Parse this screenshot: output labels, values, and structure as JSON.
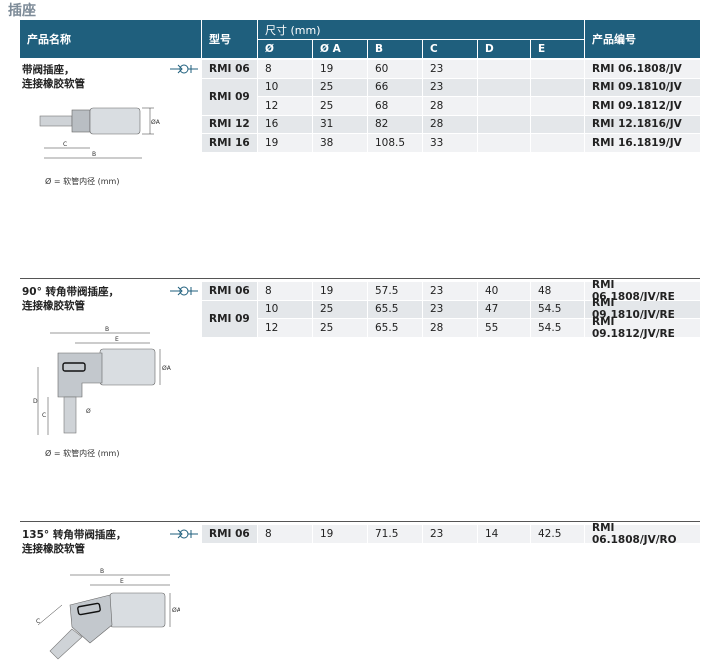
{
  "title": "插座",
  "table": {
    "header": {
      "product_name": "产品名称",
      "model": "型号",
      "dimensions": "尺寸 (mm)",
      "columns": [
        "Ø",
        "Ø A",
        "B",
        "C",
        "D",
        "E"
      ],
      "part_number": "产品编号"
    }
  },
  "sections": [
    {
      "name_lines": [
        "带阀插座，",
        "连接橡胶软管"
      ],
      "rows": [
        {
          "model": "RMI 06",
          "values": [
            8,
            19,
            60,
            23
          ],
          "part_number": "RMI 06.1808/JV"
        },
        {
          "model": "RMI 09",
          "values": [
            10,
            25,
            66,
            23
          ],
          "part_number": "RMI 09.1810/JV"
        },
        {
          "model": null,
          "values": [
            12,
            25,
            68,
            28
          ],
          "part_number": "RMI 09.1812/JV"
        },
        {
          "model": "RMI 12",
          "values": [
            16,
            31,
            82,
            28
          ],
          "part_number": "RMI 12.1816/JV"
        },
        {
          "model": "RMI 16",
          "values": [
            19,
            38,
            108.5,
            33
          ],
          "part_number": "RMI 16.1819/JV"
        }
      ],
      "diagram_labels": [
        "ØA",
        "C",
        "B"
      ],
      "note": "Ø = 软管内径 (mm)"
    },
    {
      "name_lines": [
        "90° 转角带阀插座，",
        "连接橡胶软管"
      ],
      "rows": [
        {
          "model": "RMI 06",
          "values": [
            8,
            19,
            57.5,
            23,
            40,
            48
          ],
          "part_number": "RMI 06.1808/JV/RE"
        },
        {
          "model": "RMI 09",
          "values": [
            10,
            25,
            65.5,
            23,
            47,
            54.5
          ],
          "part_number": "RMI 09.1810/JV/RE"
        },
        {
          "model": null,
          "values": [
            12,
            25,
            65.5,
            28,
            55,
            54.5
          ],
          "part_number": "RMI 09.1812/JV/RE"
        }
      ],
      "diagram_labels": [
        "B",
        "E",
        "ØA",
        "D",
        "C",
        "Ø"
      ],
      "note": "Ø = 软管内径 (mm)"
    },
    {
      "name_lines": [
        "135° 转角带阀插座，",
        "连接橡胶软管"
      ],
      "rows": [
        {
          "model": "RMI 06",
          "values": [
            8,
            19,
            71.5,
            23,
            14,
            42.5
          ],
          "part_number": "RMI 06.1808/JV/RO"
        }
      ],
      "diagram_labels": [
        "B",
        "E",
        "C",
        "ØA"
      ]
    }
  ]
}
